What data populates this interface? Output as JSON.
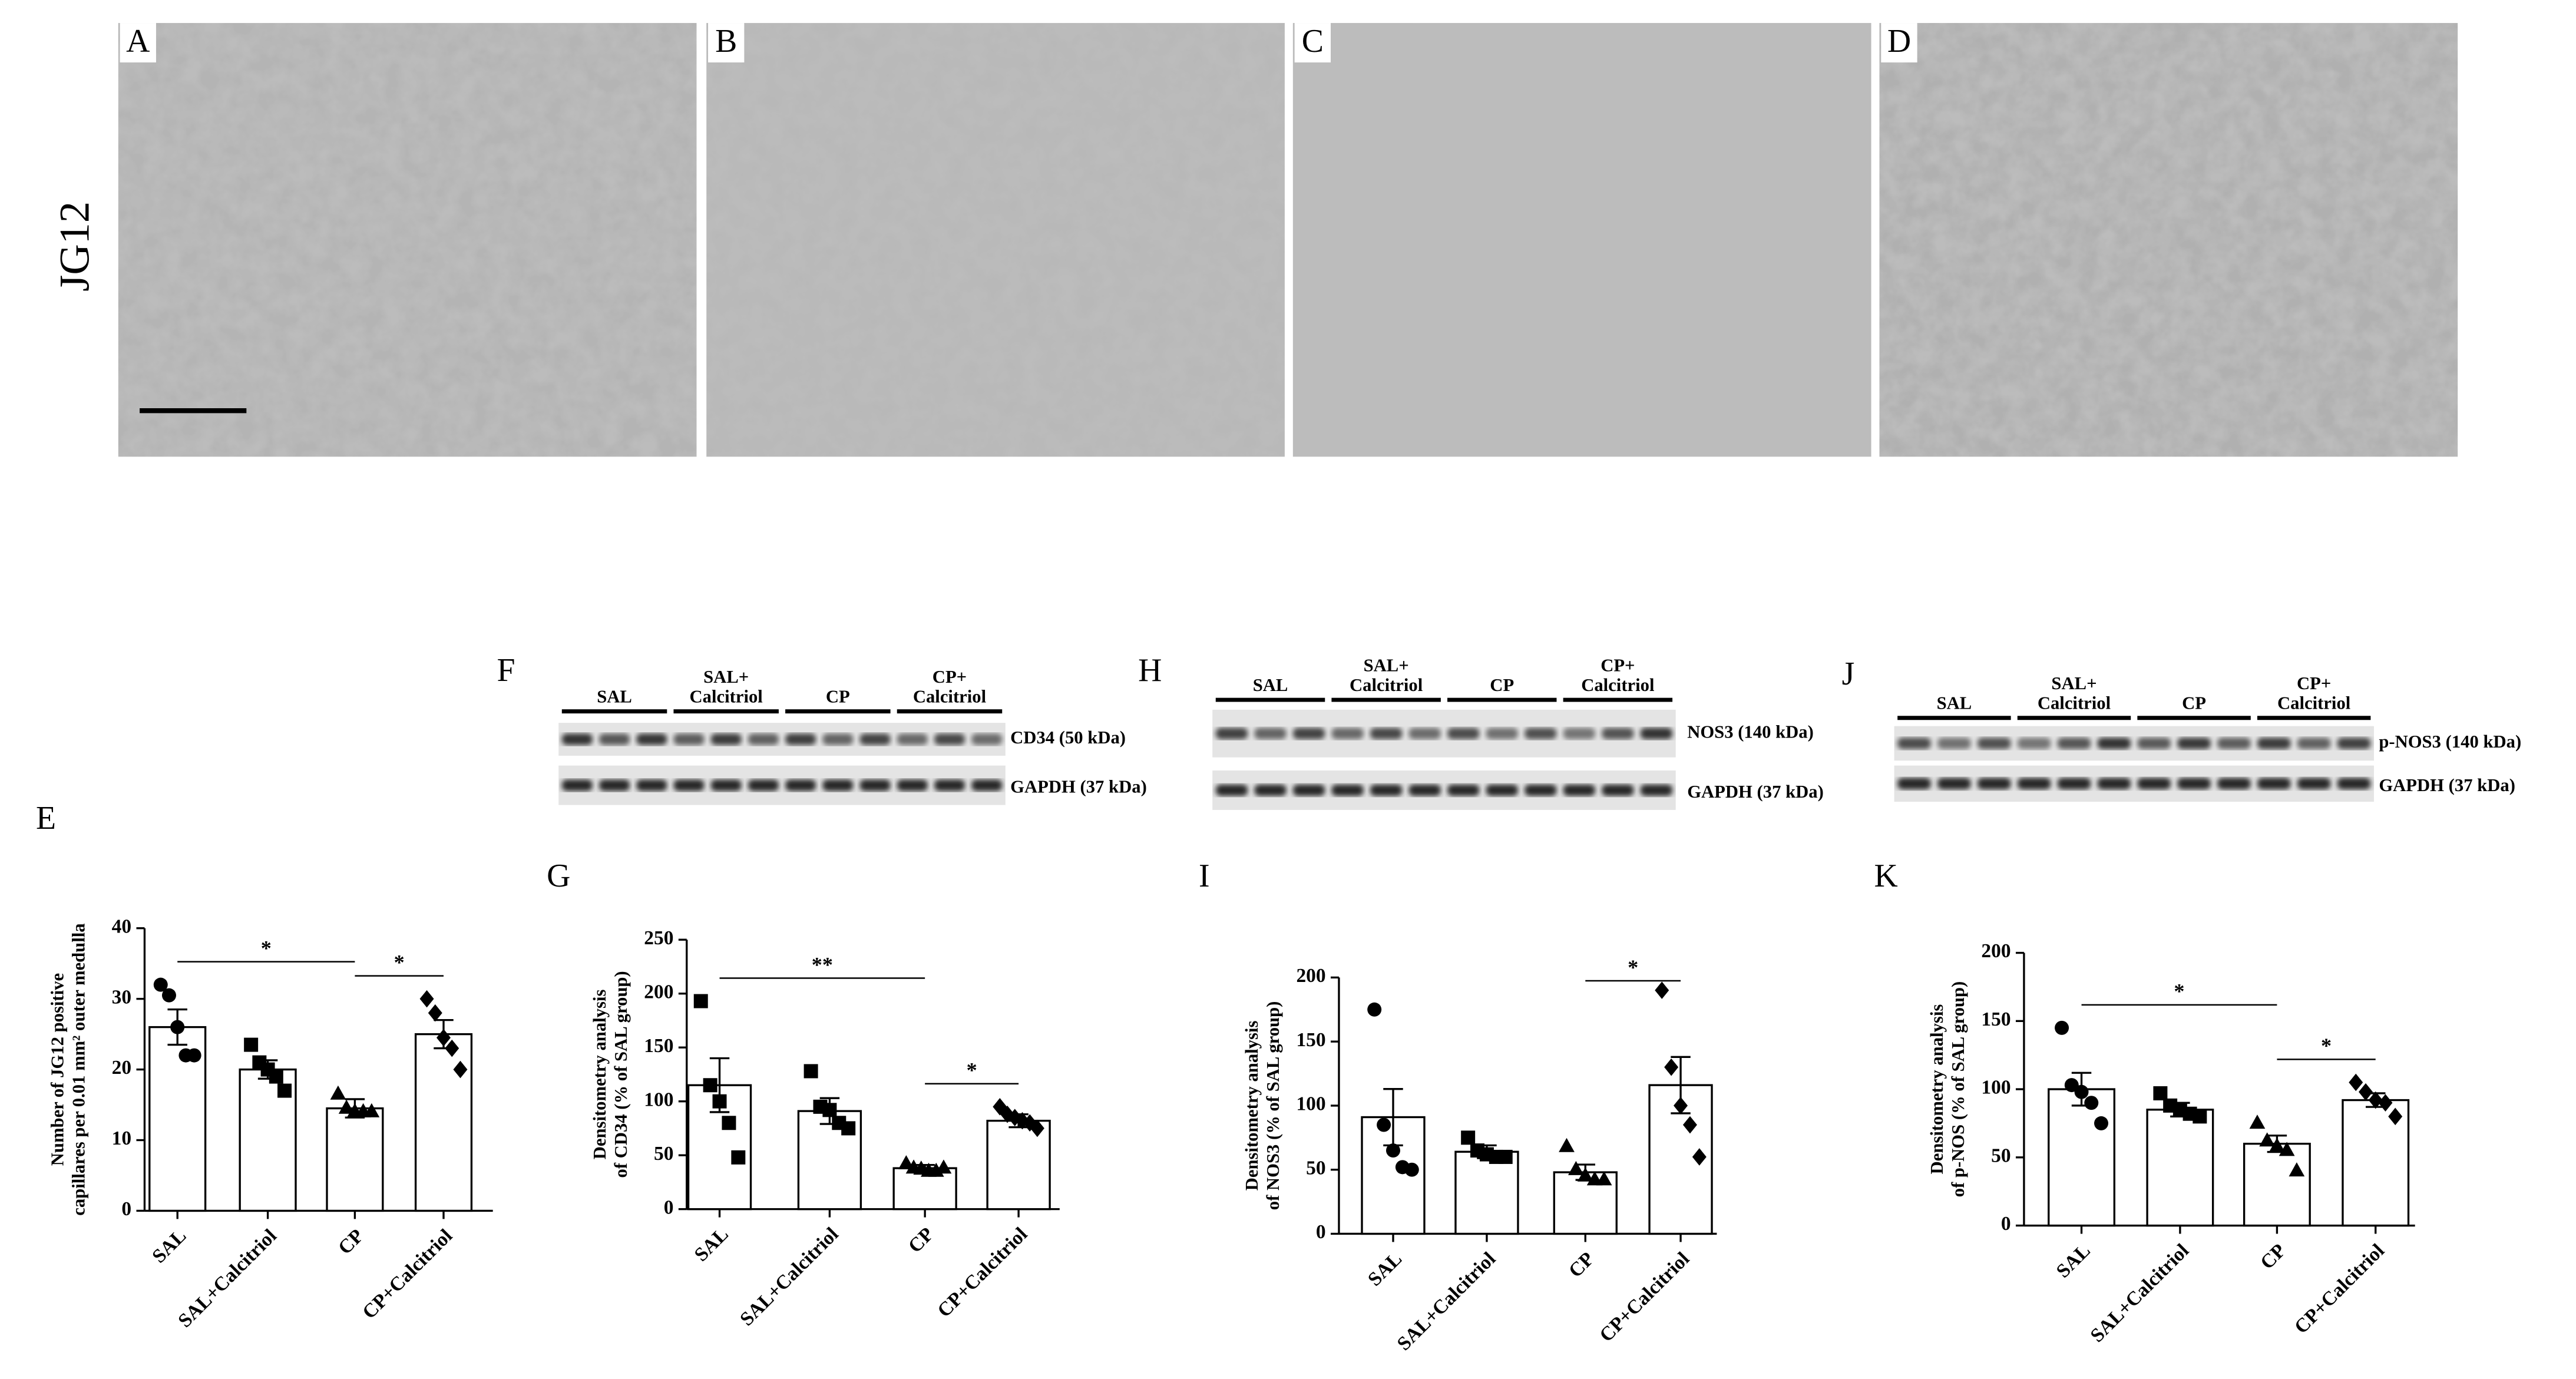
{
  "micrographs": {
    "row_label": "JG12",
    "panels": [
      "A",
      "B",
      "C",
      "D"
    ]
  },
  "blots": [
    {
      "panel": "F",
      "groups": [
        [
          "SAL"
        ],
        [
          "SAL+",
          "Calcitriol"
        ],
        [
          "CP"
        ],
        [
          "CP+",
          "Calcitriol"
        ]
      ],
      "bands": [
        "CD34 (50 kDa)",
        "GAPDH (37 kDa)"
      ]
    },
    {
      "panel": "H",
      "groups": [
        [
          "SAL"
        ],
        [
          "SAL+",
          "Calcitriol"
        ],
        [
          "CP"
        ],
        [
          "CP+",
          "Calcitriol"
        ]
      ],
      "bands": [
        "NOS3 (140 kDa)",
        "GAPDH (37 kDa)"
      ]
    },
    {
      "panel": "J",
      "groups": [
        [
          "SAL"
        ],
        [
          "SAL+",
          "Calcitriol"
        ],
        [
          "CP"
        ],
        [
          "CP+",
          "Calcitriol"
        ]
      ],
      "bands": [
        "p-NOS3 (140 kDa)",
        "GAPDH (37 kDa)"
      ]
    }
  ],
  "chart_data": [
    {
      "panel": "E",
      "type": "bar",
      "ylabel": [
        "Number of JG12 positive",
        "capillares per 0.01 mm² outer medulla"
      ],
      "categories": [
        "SAL",
        "SAL+Calcitriol",
        "CP",
        "CP+Calcitriol"
      ],
      "values": [
        26,
        20,
        14.5,
        25
      ],
      "errors": [
        2.5,
        1.3,
        1.3,
        2
      ],
      "points": [
        [
          32,
          30.5,
          26,
          22,
          22
        ],
        [
          23.5,
          21,
          20,
          19,
          17
        ],
        [
          16.5,
          14.5,
          14,
          14,
          14
        ],
        [
          30,
          28,
          24.5,
          23,
          20
        ]
      ],
      "markers": [
        "circle",
        "square",
        "triangle",
        "diamond"
      ],
      "ylim": [
        0,
        40
      ],
      "yticks": [
        0,
        10,
        20,
        30,
        40
      ],
      "significance": [
        {
          "between": [
            0,
            2
          ],
          "label": "*"
        },
        {
          "between": [
            2,
            3
          ],
          "label": "*"
        }
      ]
    },
    {
      "panel": "G",
      "type": "bar",
      "ylabel": [
        "Densitometry analysis",
        "of CD34 (% of SAL group)"
      ],
      "categories": [
        "SAL",
        "SAL+Calcitriol",
        "CP",
        "CP+Calcitriol"
      ],
      "values": [
        115,
        91,
        38,
        82
      ],
      "errors": [
        25,
        12,
        3,
        6
      ],
      "points": [
        [
          193,
          115,
          100,
          80,
          48
        ],
        [
          128,
          95,
          92,
          80,
          75
        ],
        [
          42,
          38,
          37,
          35,
          35,
          38
        ],
        [
          95,
          88,
          85,
          82,
          80,
          75
        ]
      ],
      "markers": [
        "square",
        "square",
        "triangle",
        "diamond"
      ],
      "ylim": [
        0,
        250
      ],
      "yticks": [
        0,
        50,
        100,
        150,
        200,
        250
      ],
      "significance": [
        {
          "between": [
            0,
            2
          ],
          "label": "**"
        },
        {
          "between": [
            2,
            3
          ],
          "label": "*"
        }
      ]
    },
    {
      "panel": "I",
      "type": "bar",
      "ylabel": [
        "Densitometry analysis",
        "of NOS3 (% of SAL group)"
      ],
      "categories": [
        "SAL",
        "SAL+Calcitriol",
        "CP",
        "CP+Calcitriol"
      ],
      "values": [
        91,
        64,
        48,
        116
      ],
      "errors": [
        22,
        5,
        6,
        22
      ],
      "points": [
        [
          175,
          85,
          65,
          52,
          50
        ],
        [
          75,
          65,
          62,
          60,
          60
        ],
        [
          68,
          50,
          45,
          42,
          42
        ],
        [
          190,
          130,
          100,
          85,
          60
        ]
      ],
      "markers": [
        "circle",
        "square",
        "triangle",
        "diamond"
      ],
      "ylim": [
        0,
        200
      ],
      "yticks": [
        0,
        50,
        100,
        150,
        200
      ],
      "significance": [
        {
          "between": [
            2,
            3
          ],
          "label": "*"
        }
      ]
    },
    {
      "panel": "K",
      "type": "bar",
      "ylabel": [
        "Densitometry analysis",
        "of p-NOS (% of SAL group)"
      ],
      "categories": [
        "SAL",
        "SAL+Calcitriol",
        "CP",
        "CP+Calcitriol"
      ],
      "values": [
        100,
        85,
        60,
        92
      ],
      "errors": [
        12,
        5,
        6,
        5
      ],
      "points": [
        [
          145,
          103,
          98,
          90,
          75
        ],
        [
          97,
          88,
          85,
          82,
          80
        ],
        [
          75,
          62,
          58,
          55,
          40
        ],
        [
          105,
          98,
          92,
          90,
          80
        ]
      ],
      "markers": [
        "circle",
        "square",
        "triangle",
        "diamond"
      ],
      "ylim": [
        0,
        200
      ],
      "yticks": [
        0,
        50,
        100,
        150,
        200
      ],
      "significance": [
        {
          "between": [
            0,
            2
          ],
          "label": "*"
        },
        {
          "between": [
            2,
            3
          ],
          "label": "*"
        }
      ]
    }
  ]
}
